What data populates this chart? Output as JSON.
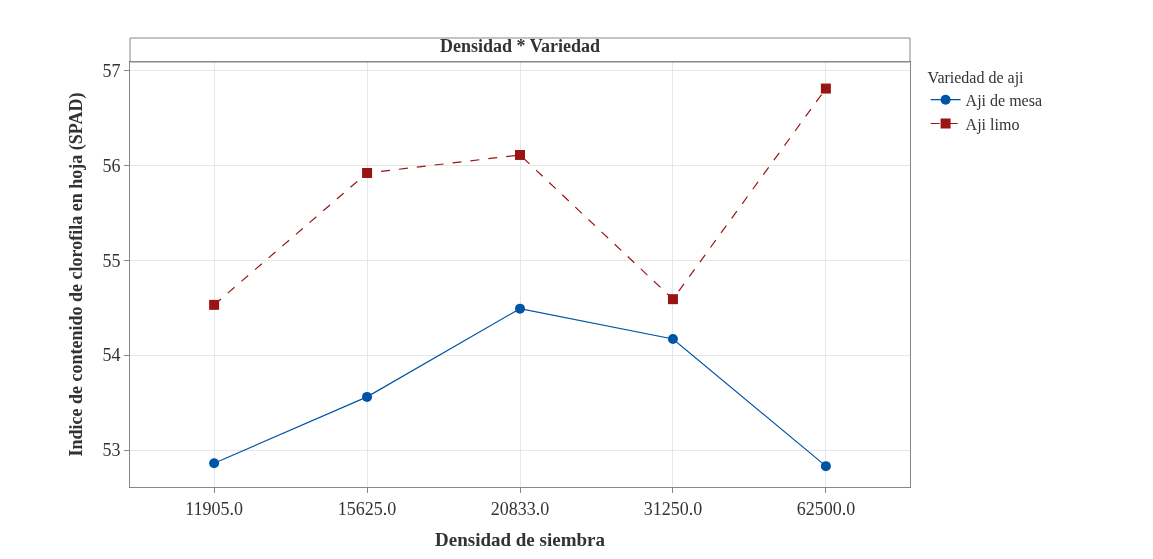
{
  "chart_data": {
    "type": "line",
    "title": "Densidad * Variedad",
    "xlabel": "Densidad de siembra",
    "ylabel": "Indice de contenido de clorofila en hoja (SPAD)",
    "legend_title": "Variedad de aji",
    "categories": [
      "11905.0",
      "15625.0",
      "20833.0",
      "31250.0",
      "62500.0"
    ],
    "series": [
      {
        "name": "Aji de mesa",
        "color": "#0054a6",
        "marker": "circle",
        "line_style": "solid",
        "values": [
          52.86,
          53.56,
          54.49,
          54.17,
          52.83
        ]
      },
      {
        "name": "Aji limo",
        "color": "#9b1414",
        "marker": "square",
        "line_style": "dashed",
        "values": [
          54.53,
          55.92,
          56.11,
          54.59,
          56.81
        ]
      }
    ],
    "ylim": [
      52.61,
      57.09
    ],
    "yticks": [
      53,
      54,
      55,
      56,
      57
    ],
    "grid": true,
    "legend": "top right"
  }
}
